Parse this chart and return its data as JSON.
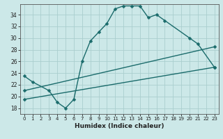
{
  "xlabel": "Humidex (Indice chaleur)",
  "bg_color": "#cce8e8",
  "grid_color": "#aacece",
  "line_color": "#1a6b6b",
  "xlim": [
    -0.5,
    23.5
  ],
  "ylim": [
    17.0,
    35.8
  ],
  "xticks": [
    0,
    1,
    2,
    3,
    4,
    5,
    6,
    7,
    8,
    9,
    10,
    11,
    12,
    13,
    14,
    15,
    16,
    17,
    18,
    19,
    20,
    21,
    22,
    23
  ],
  "yticks": [
    18,
    20,
    22,
    24,
    26,
    28,
    30,
    32,
    34
  ],
  "curve1": {
    "x": [
      0,
      1,
      3,
      4,
      5,
      6,
      7,
      8,
      9,
      10,
      11,
      12,
      13,
      14,
      15,
      16,
      17,
      20,
      21,
      23
    ],
    "y": [
      23.5,
      22.5,
      21.0,
      19.0,
      18.0,
      19.5,
      26.0,
      29.5,
      31.0,
      32.5,
      35.0,
      35.5,
      35.5,
      35.5,
      33.5,
      34.0,
      33.0,
      30.0,
      29.0,
      25.0
    ]
  },
  "curve2": {
    "x": [
      0,
      23
    ],
    "y": [
      21.0,
      28.5
    ]
  },
  "curve3": {
    "x": [
      0,
      23
    ],
    "y": [
      19.5,
      25.0
    ]
  }
}
